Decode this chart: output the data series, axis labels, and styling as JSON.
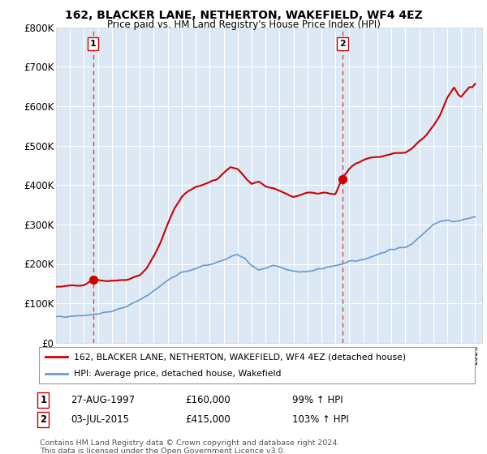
{
  "title_line1": "162, BLACKER LANE, NETHERTON, WAKEFIELD, WF4 4EZ",
  "title_line2": "Price paid vs. HM Land Registry's House Price Index (HPI)",
  "plot_bg_color": "#dce9f5",
  "ylim": [
    0,
    800000
  ],
  "yticks": [
    0,
    100000,
    200000,
    300000,
    400000,
    500000,
    600000,
    700000,
    800000
  ],
  "ytick_labels": [
    "£0",
    "£100K",
    "£200K",
    "£300K",
    "£400K",
    "£500K",
    "£600K",
    "£700K",
    "£800K"
  ],
  "hpi_color": "#6699cc",
  "price_color": "#cc0000",
  "marker_color": "#cc0000",
  "dashed_line_color": "#dd4444",
  "legend_label_price": "162, BLACKER LANE, NETHERTON, WAKEFIELD, WF4 4EZ (detached house)",
  "legend_label_hpi": "HPI: Average price, detached house, Wakefield",
  "annotation1_date": "27-AUG-1997",
  "annotation1_price": "£160,000",
  "annotation1_hpi": "99% ↑ HPI",
  "annotation2_date": "03-JUL-2015",
  "annotation2_price": "£415,000",
  "annotation2_hpi": "103% ↑ HPI",
  "sale1_x": 1997.65,
  "sale1_y": 160000,
  "sale2_x": 2015.5,
  "sale2_y": 415000,
  "copyright_text": "Contains HM Land Registry data © Crown copyright and database right 2024.\nThis data is licensed under the Open Government Licence v3.0.",
  "xmin": 1995,
  "xmax": 2025.5
}
